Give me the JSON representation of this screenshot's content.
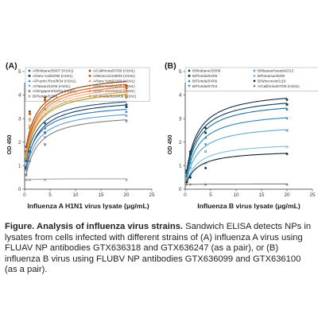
{
  "chart_data": [
    {
      "panel_label": "(A)",
      "type": "line",
      "xlabel": "Influenza A H1N1 virus lysate (μg/mL)",
      "ylabel": "OD 450",
      "xlim": [
        0,
        25
      ],
      "ylim": [
        0,
        5
      ],
      "x_ticks": [
        "0",
        "5",
        "10",
        "15",
        "20",
        "25"
      ],
      "y_ticks": [
        "0",
        "1",
        "2",
        "3",
        "4",
        "5"
      ],
      "grid": false,
      "legend_position": "top",
      "x": [
        0.3,
        1,
        4,
        20
      ],
      "series": [
        {
          "name": "A/Brisbane/59/07 (H1N1)",
          "color": "#1f4e79",
          "marker": "diamond",
          "values": [
            1.2,
            2.1,
            2.8,
            3.6
          ]
        },
        {
          "name": "A/New Cal/20/99 (H1N1)",
          "color": "#1a3a5c",
          "marker": "square",
          "values": [
            0.9,
            1.6,
            2.4,
            3.5
          ]
        },
        {
          "name": "A/Puerto Rico/8/34 (H1N1)",
          "color": "#2e75b6",
          "marker": "triangle",
          "values": [
            1.0,
            1.8,
            2.6,
            3.3
          ]
        },
        {
          "name": "A/Taiwan/42/06 (H1N1)",
          "color": "#5b9bd5",
          "marker": "triangle-down",
          "values": [
            0.8,
            1.5,
            2.2,
            3.1
          ]
        },
        {
          "name": "A/Singapore/63/04 (H1N1)",
          "color": "#7f7f7f",
          "marker": "x",
          "values": [
            0.6,
            1.2,
            1.9,
            2.9
          ]
        },
        {
          "name": "B/Florida/02/06",
          "color": "#a6a6a6",
          "marker": "x",
          "values": [
            0.4,
            0.4,
            0.4,
            0.4
          ]
        },
        {
          "name": "A/California/07/09 (H1N1)",
          "color": "#843c0c",
          "marker": "diamond",
          "values": [
            1.8,
            3.3,
            3.9,
            4.4
          ]
        },
        {
          "name": "A/Mexico/4108/09 (H1N1)",
          "color": "#c55a11",
          "marker": "square",
          "values": [
            1.6,
            3.2,
            3.8,
            4.3
          ]
        },
        {
          "name": "A/New York/01/09 (H1N1)",
          "color": "#ed7d31",
          "marker": "triangle",
          "values": [
            1.5,
            3.0,
            3.7,
            4.2
          ]
        },
        {
          "name": "A/New York/02/09 (H1N1)",
          "color": "#f4b183",
          "marker": "triangle-down",
          "values": [
            1.4,
            2.9,
            3.6,
            4.1
          ]
        },
        {
          "name": "A/New York/03/09 (H1N1)",
          "color": "#c9a27e",
          "marker": "x",
          "values": [
            1.3,
            2.7,
            3.4,
            4.0
          ]
        },
        {
          "name": "A/Canada/6294/09 (H1N1)",
          "color": "#bf9000",
          "marker": "circle",
          "values": [
            1.3,
            2.6,
            3.4,
            3.9
          ]
        }
      ]
    },
    {
      "panel_label": "(B)",
      "type": "line",
      "xlabel": "Influenza B virus lysate (μg/mL)",
      "ylabel": "OD 450",
      "xlim": [
        0,
        25
      ],
      "ylim": [
        0,
        5
      ],
      "x_ticks": [
        "0",
        "5",
        "10",
        "15",
        "20",
        "25"
      ],
      "y_ticks": [
        "0",
        "1",
        "2",
        "3",
        "4",
        "5"
      ],
      "grid": false,
      "legend_position": "top",
      "x": [
        0.3,
        1,
        4,
        20
      ],
      "series": [
        {
          "name": "B/Brisbane/33/08",
          "color": "#1b2a3a",
          "marker": "diamond",
          "values": [
            0.8,
            1.6,
            2.6,
            3.8
          ]
        },
        {
          "name": "B/Florida/02/06",
          "color": "#0b3d5c",
          "marker": "square",
          "values": [
            0.7,
            1.5,
            2.4,
            3.6
          ]
        },
        {
          "name": "B/Florida/04/06",
          "color": "#1f6f9a",
          "marker": "triangle",
          "values": [
            0.6,
            1.3,
            2.2,
            3.4
          ]
        },
        {
          "name": "B/Florida/07/04",
          "color": "#2e86b5",
          "marker": "triangle-down",
          "values": [
            0.5,
            1.1,
            1.9,
            3.0
          ]
        },
        {
          "name": "B/Massachusetts/2/12",
          "color": "#5fa8cf",
          "marker": "x",
          "values": [
            0.4,
            0.9,
            1.6,
            2.5
          ]
        },
        {
          "name": "B/Panama/45/90",
          "color": "#82c0de",
          "marker": "asterisk",
          "values": [
            0.3,
            0.6,
            1.1,
            1.8
          ]
        },
        {
          "name": "B/Wisconsin/1/10",
          "color": "#102030",
          "marker": "diamond",
          "values": [
            0.3,
            0.5,
            0.9,
            1.5
          ]
        },
        {
          "name": "A/California/07/09 (H1N1)",
          "color": "#7f7f7f",
          "marker": "diamond",
          "values": [
            0.2,
            0.2,
            0.2,
            0.2
          ]
        }
      ]
    }
  ],
  "caption": {
    "bold": "Figure. Analysis of influenza virus strains.",
    "text": " Sandwich ELISA detects NPs in lysates from cells infected with different strains of (A) influenza A virus using FLUAV NP antibodies GTX636318 and GTX636247 (as a pair), or (B) influenza B virus using FLUBV NP antibodies GTX636099 and GTX636100 (as a pair)."
  }
}
